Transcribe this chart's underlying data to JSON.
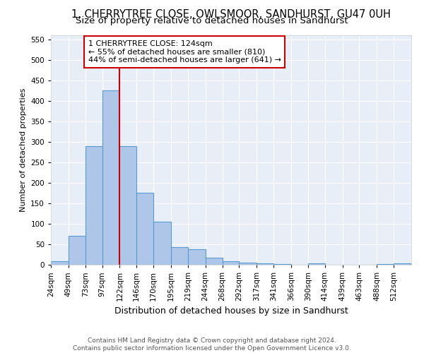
{
  "title": "1, CHERRYTREE CLOSE, OWLSMOOR, SANDHURST, GU47 0UH",
  "subtitle": "Size of property relative to detached houses in Sandhurst",
  "xlabel": "Distribution of detached houses by size in Sandhurst",
  "ylabel": "Number of detached properties",
  "bar_color": "#aec6e8",
  "bar_edge_color": "#5b9bd5",
  "background_color": "#e8eef8",
  "grid_color": "#ffffff",
  "vline_x": 122,
  "vline_color": "#cc0000",
  "annotation_text": "1 CHERRYTREE CLOSE: 124sqm\n← 55% of detached houses are smaller (810)\n44% of semi-detached houses are larger (641) →",
  "annotation_box_color": "#cc0000",
  "bin_edges": [
    24,
    49,
    73,
    97,
    122,
    146,
    170,
    195,
    219,
    244,
    268,
    292,
    317,
    341,
    366,
    390,
    414,
    439,
    463,
    488,
    512
  ],
  "bin_labels": [
    "24sqm",
    "49sqm",
    "73sqm",
    "97sqm",
    "122sqm",
    "146sqm",
    "170sqm",
    "195sqm",
    "219sqm",
    "244sqm",
    "268sqm",
    "292sqm",
    "317sqm",
    "341sqm",
    "366sqm",
    "390sqm",
    "414sqm",
    "439sqm",
    "463sqm",
    "488sqm",
    "512sqm"
  ],
  "values": [
    8,
    70,
    290,
    425,
    290,
    175,
    105,
    43,
    38,
    18,
    8,
    5,
    3,
    2,
    0,
    3,
    0,
    0,
    0,
    2,
    3
  ],
  "ylim": [
    0,
    560
  ],
  "yticks": [
    0,
    50,
    100,
    150,
    200,
    250,
    300,
    350,
    400,
    450,
    500,
    550
  ],
  "footer_text": "Contains HM Land Registry data © Crown copyright and database right 2024.\nContains public sector information licensed under the Open Government Licence v3.0.",
  "title_fontsize": 10.5,
  "subtitle_fontsize": 9.5,
  "xlabel_fontsize": 9,
  "ylabel_fontsize": 8,
  "tick_fontsize": 7.5,
  "footer_fontsize": 6.5,
  "annotation_fontsize": 8
}
